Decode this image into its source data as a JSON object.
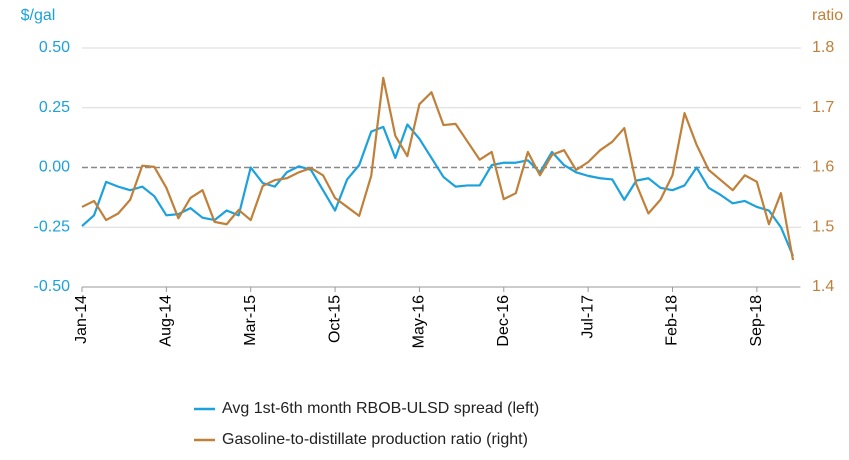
{
  "chart_data": {
    "type": "line",
    "y_label": "$/gal",
    "y2_label": "ratio",
    "categories": [
      "Jan-14",
      null,
      null,
      null,
      null,
      null,
      null,
      "Aug-14",
      null,
      null,
      null,
      null,
      null,
      null,
      "Mar-15",
      null,
      null,
      null,
      null,
      null,
      null,
      "Oct-15",
      null,
      null,
      null,
      null,
      null,
      null,
      "May-16",
      null,
      null,
      null,
      null,
      null,
      null,
      "Dec-16",
      null,
      null,
      null,
      null,
      null,
      null,
      "Jul-17",
      null,
      null,
      null,
      null,
      null,
      null,
      "Feb-18",
      null,
      null,
      null,
      null,
      null,
      null,
      "Sep-18",
      null,
      null,
      null
    ],
    "series": [
      {
        "name": "Avg 1st-6th month RBOB-ULSD spread (left)",
        "color": "#1ba1dc",
        "axis": "y",
        "values": [
          -0.245,
          -0.2,
          -0.06,
          -0.08,
          -0.095,
          -0.08,
          -0.12,
          -0.2,
          -0.195,
          -0.17,
          -0.21,
          -0.22,
          -0.18,
          -0.2,
          0.0,
          -0.065,
          -0.08,
          -0.02,
          0.005,
          -0.01,
          -0.095,
          -0.18,
          -0.05,
          0.01,
          0.15,
          0.17,
          0.04,
          0.18,
          0.12,
          0.04,
          -0.04,
          -0.08,
          -0.075,
          -0.075,
          0.01,
          0.02,
          0.02,
          0.03,
          -0.02,
          0.065,
          0.01,
          -0.02,
          -0.035,
          -0.045,
          -0.05,
          -0.135,
          -0.055,
          -0.045,
          -0.085,
          -0.095,
          -0.075,
          0.0,
          -0.085,
          -0.115,
          -0.15,
          -0.14,
          -0.165,
          -0.18,
          -0.25,
          -0.37
        ]
      },
      {
        "name": "Gasoline-to-distillate production ratio (right)",
        "color": "#c0803a",
        "axis": "y2",
        "values": [
          1.534,
          1.544,
          1.512,
          1.523,
          1.546,
          1.603,
          1.601,
          1.566,
          1.515,
          1.549,
          1.562,
          1.509,
          1.505,
          1.529,
          1.512,
          1.569,
          1.579,
          1.582,
          1.592,
          1.599,
          1.587,
          1.549,
          1.534,
          1.519,
          1.586,
          1.75,
          1.653,
          1.619,
          1.706,
          1.726,
          1.671,
          1.673,
          1.643,
          1.613,
          1.626,
          1.547,
          1.557,
          1.626,
          1.587,
          1.621,
          1.629,
          1.596,
          1.609,
          1.629,
          1.643,
          1.666,
          1.572,
          1.523,
          1.546,
          1.587,
          1.691,
          1.638,
          1.596,
          1.579,
          1.562,
          1.587,
          1.576,
          1.505,
          1.557,
          1.445
        ]
      }
    ],
    "ylim": [
      -0.5,
      0.5
    ],
    "yticks": [
      {
        "value": 0.5,
        "label": "0.50"
      },
      {
        "value": 0.25,
        "label": "0.25"
      },
      {
        "value": 0,
        "label": "0.00"
      },
      {
        "value": -0.25,
        "label": "-0.25"
      },
      {
        "value": -0.5,
        "label": "-0.50"
      }
    ],
    "y2lim": [
      1.4,
      1.8
    ],
    "y2ticks": [
      1.8,
      1.7,
      1.6,
      1.5,
      1.4
    ],
    "grid": true
  }
}
